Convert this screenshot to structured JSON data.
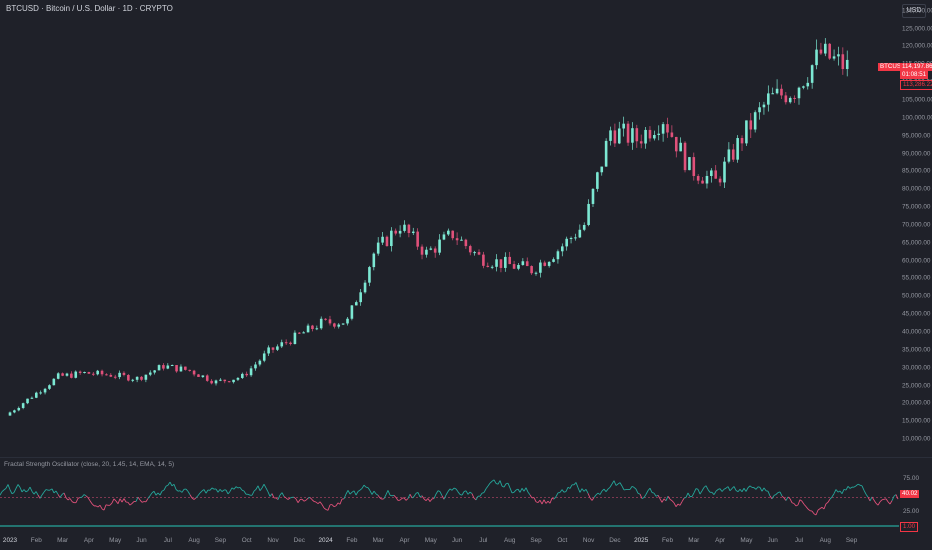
{
  "header": {
    "title": "BTCUSD · Bitcoin / U.S. Dollar · 1D · CRYPTO",
    "currency": "USD"
  },
  "price_axis": {
    "ticks": [
      "130,000.00",
      "125,000.00",
      "120,000.00",
      "115,000.00",
      "110,000.00",
      "105,000.00",
      "100,000.00",
      "95,000.00",
      "90,000.00",
      "85,000.00",
      "80,000.00",
      "75,000.00",
      "70,000.00",
      "65,000.00",
      "60,000.00",
      "55,000.00",
      "50,000.00",
      "45,000.00",
      "40,000.00",
      "35,000.00",
      "30,000.00",
      "25,000.00",
      "20,000.00",
      "15,000.00",
      "10,000.00"
    ]
  },
  "price_tags": {
    "symbol": "BTCUSD",
    "last_price": "114,197.86",
    "countdown": "01:08:51",
    "previous": "113,286.22"
  },
  "oscillator": {
    "title": "Fractal Strength Oscillator (close, 20, 1.45, 14, EMA, 14, 5)",
    "ticks": [
      "75.00",
      "25.00"
    ],
    "value": "40.02",
    "bottom_value": "1.00"
  },
  "time_axis": {
    "labels": [
      "2023",
      "Feb",
      "Mar",
      "Apr",
      "May",
      "Jun",
      "Jul",
      "Aug",
      "Sep",
      "Oct",
      "Nov",
      "Dec",
      "2024",
      "Feb",
      "Mar",
      "Apr",
      "May",
      "Jun",
      "Jul",
      "Aug",
      "Sep",
      "Oct",
      "Nov",
      "Dec",
      "2025",
      "Feb",
      "Mar",
      "Apr",
      "May",
      "Jun",
      "Jul",
      "Aug",
      "Sep"
    ]
  },
  "colors": {
    "up": "#26a69a",
    "up_bright": "#7ce8d3",
    "down": "#e0517a",
    "tag": "#f23645",
    "background": "#1f2129"
  },
  "chart_data": {
    "type": "line",
    "title": "BTCUSD · Bitcoin / U.S. Dollar · 1D · CRYPTO",
    "x": [
      "2023-01",
      "2023-02",
      "2023-03",
      "2023-04",
      "2023-05",
      "2023-06",
      "2023-07",
      "2023-08",
      "2023-09",
      "2023-10",
      "2023-11",
      "2023-12",
      "2024-01",
      "2024-02",
      "2024-03",
      "2024-04",
      "2024-05",
      "2024-06",
      "2024-07",
      "2024-08",
      "2024-09",
      "2024-10",
      "2024-11",
      "2024-12",
      "2025-01",
      "2025-02",
      "2025-03",
      "2025-04",
      "2025-05",
      "2025-06",
      "2025-07",
      "2025-08",
      "2025-09"
    ],
    "series": [
      {
        "name": "BTCUSD",
        "values": [
          16600,
          22000,
          27500,
          28500,
          28000,
          27000,
          30500,
          29200,
          26000,
          27500,
          34500,
          38500,
          42500,
          43000,
          62000,
          70000,
          62000,
          67500,
          61000,
          59000,
          57500,
          63000,
          70000,
          96500,
          94000,
          100000,
          86000,
          82000,
          94500,
          105000,
          108000,
          118000,
          114197.86
        ]
      }
    ],
    "ylim": [
      5000,
      133000
    ],
    "oscillator_ylim": [
      0,
      100
    ]
  }
}
